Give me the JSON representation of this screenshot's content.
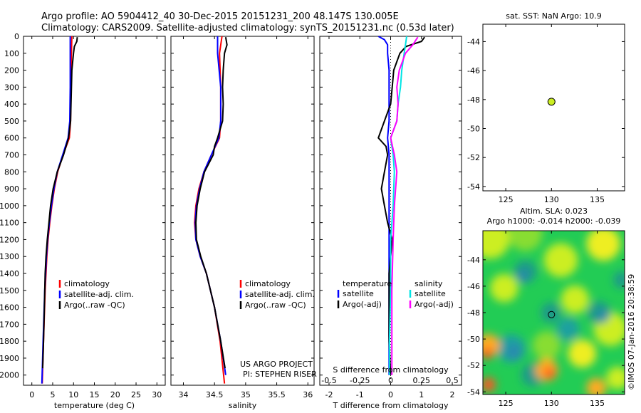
{
  "header": {
    "line1": "Argo profile: AO 5904412_40 30-Dec-2015 20151231_200 48.147S 130.005E",
    "line2": "Climatology: CARS2009. Satellite-adjusted climatology: synTS_20151231.nc (0.53d later)"
  },
  "colors": {
    "climatology": "#ff0000",
    "satellite": "#0000ff",
    "argo": "#000000",
    "sal_sat": "#00e5e5",
    "sal_argo": "#ff00ff",
    "marker": "#ccee22"
  },
  "watermark": "©IMOS 07-Jan-2016 20:38:59",
  "credits": {
    "project": "US ARGO PROJECT",
    "pi": "PI: STEPHEN RISER"
  },
  "chart_data": [
    {
      "type": "line",
      "id": "temperature",
      "xlabel": "temperature (deg C)",
      "xlim": [
        -2,
        32
      ],
      "xticks": [
        0,
        5,
        10,
        15,
        20,
        25,
        30
      ],
      "ylim": [
        0,
        2060
      ],
      "yticks": [
        0,
        100,
        200,
        300,
        400,
        500,
        600,
        700,
        800,
        900,
        1000,
        1100,
        1200,
        1300,
        1400,
        1500,
        1600,
        1700,
        1800,
        1900,
        2000
      ],
      "legend": [
        "climatology",
        "satellite-adj. clim.",
        "Argo(..raw -QC)"
      ],
      "series": [
        {
          "name": "climatology",
          "color": "#ff0000",
          "depth": [
            0,
            100,
            300,
            500,
            600,
            700,
            800,
            900,
            1000,
            1100,
            1200,
            1300,
            1500,
            1800,
            2050
          ],
          "values": [
            9.6,
            9.5,
            9.4,
            9.3,
            9.0,
            7.5,
            6.2,
            5.4,
            4.8,
            4.3,
            3.9,
            3.6,
            3.2,
            2.8,
            2.5
          ]
        },
        {
          "name": "satellite-adj. clim.",
          "color": "#0000ff",
          "depth": [
            0,
            100,
            300,
            500,
            600,
            700,
            800,
            900,
            1000,
            1100,
            1200,
            1300,
            1500,
            1800,
            2050
          ],
          "values": [
            9.2,
            9.2,
            9.2,
            9.1,
            8.7,
            7.4,
            6.1,
            5.3,
            4.7,
            4.2,
            3.8,
            3.5,
            3.1,
            2.7,
            2.4
          ]
        },
        {
          "name": "Argo(..raw -QC)",
          "color": "#000000",
          "depth": [
            5,
            30,
            60,
            100,
            200,
            300,
            400,
            500,
            600,
            700,
            800,
            900,
            1000,
            1100,
            1200,
            1300,
            1400,
            1600,
            1800,
            1960
          ],
          "values": [
            10.9,
            10.8,
            10.2,
            10.0,
            9.6,
            9.5,
            9.4,
            9.3,
            8.8,
            7.6,
            6.1,
            5.1,
            4.5,
            4.1,
            3.7,
            3.4,
            3.2,
            3.0,
            2.8,
            2.6
          ]
        }
      ]
    },
    {
      "type": "line",
      "id": "salinity",
      "xlabel": "salinity",
      "xlim": [
        33.8,
        36.1
      ],
      "xticks": [
        34,
        34.5,
        35,
        35.5,
        36
      ],
      "xticklabels": [
        "34",
        "34.5",
        "35",
        "35.5",
        "36"
      ],
      "ylim": [
        0,
        2060
      ],
      "legend": [
        "climatology",
        "satellite-adj. clim.",
        "Argo(..raw -QC)"
      ],
      "series": [
        {
          "name": "climatology",
          "color": "#ff0000",
          "depth": [
            0,
            100,
            300,
            500,
            600,
            700,
            800,
            900,
            1000,
            1100,
            1200,
            1300,
            1400,
            1600,
            1800,
            2050
          ],
          "values": [
            34.62,
            34.58,
            34.6,
            34.6,
            34.58,
            34.45,
            34.33,
            34.25,
            34.2,
            34.18,
            34.2,
            34.27,
            34.37,
            34.5,
            34.59,
            34.66
          ]
        },
        {
          "name": "satellite-adj. clim.",
          "color": "#0000ff",
          "depth": [
            0,
            100,
            300,
            500,
            600,
            700,
            800,
            900,
            1000,
            1100,
            1200,
            1300,
            1400,
            1600,
            1800,
            2000
          ],
          "values": [
            34.55,
            34.55,
            34.6,
            34.6,
            34.57,
            34.45,
            34.33,
            34.26,
            34.21,
            34.19,
            34.2,
            34.27,
            34.37,
            34.5,
            34.6,
            34.68
          ]
        },
        {
          "name": "Argo(..raw -QC)",
          "color": "#000000",
          "depth": [
            5,
            50,
            100,
            200,
            300,
            400,
            500,
            600,
            650,
            700,
            800,
            900,
            1000,
            1100,
            1200,
            1300,
            1400,
            1600,
            1800,
            1960
          ],
          "values": [
            34.68,
            34.7,
            34.66,
            34.64,
            34.63,
            34.64,
            34.63,
            34.55,
            34.5,
            34.48,
            34.34,
            34.27,
            34.22,
            34.2,
            34.21,
            34.28,
            34.37,
            34.5,
            34.6,
            34.67
          ]
        }
      ]
    },
    {
      "type": "line",
      "id": "difference",
      "xlabel": "T difference from climatology",
      "xlim": [
        -2.3,
        2.3
      ],
      "xticks": [
        -2,
        -1,
        0,
        1,
        2
      ],
      "xticklabels": [
        "-2",
        "-1",
        "0",
        "1",
        "2"
      ],
      "top_axis_label": "S difference from climatology",
      "top_ticks": [
        -0.5,
        -0.25,
        0,
        0.25,
        0.5
      ],
      "top_ticklabels": [
        "-0.5",
        "-0.25",
        "0",
        "0.25",
        "0.5"
      ],
      "ylim": [
        0,
        2060
      ],
      "legend": {
        "temperature": [
          "satellite",
          "Argo(-adj)"
        ],
        "salinity": [
          "satellite",
          "Argo(-adj)"
        ]
      },
      "legend_headers": {
        "temperature": "temperature",
        "salinity": "salinity"
      },
      "series": [
        {
          "name": "temperature satellite",
          "color": "#0000ff",
          "depth": [
            0,
            20,
            50,
            100,
            200,
            300,
            400,
            500,
            600,
            700,
            800,
            1000,
            1200,
            1500,
            1800,
            2000
          ],
          "values": [
            -0.4,
            -0.2,
            -0.1,
            -0.1,
            -0.05,
            -0.05,
            -0.05,
            -0.05,
            -0.1,
            -0.05,
            -0.05,
            -0.05,
            -0.05,
            -0.05,
            -0.05,
            -0.05
          ]
        },
        {
          "name": "temperature Argo(-adj)",
          "color": "#000000",
          "depth": [
            5,
            30,
            60,
            100,
            200,
            300,
            400,
            500,
            600,
            650,
            700,
            800,
            900,
            1000,
            1100,
            1200,
            1300,
            1400,
            1600,
            1800,
            2000
          ],
          "values": [
            1.1,
            1.0,
            0.5,
            0.3,
            0.1,
            0.05,
            0.0,
            -0.2,
            -0.4,
            -0.15,
            -0.1,
            -0.2,
            -0.3,
            -0.2,
            -0.1,
            0.05,
            0.0,
            -0.05,
            -0.05,
            -0.05,
            0.0
          ]
        },
        {
          "name": "salinity satellite",
          "color": "#00e5e5",
          "depth": [
            0,
            50,
            100,
            200,
            300,
            400,
            500,
            600,
            700,
            800,
            1000,
            1200,
            1500,
            1800,
            2000
          ],
          "values": [
            0.13,
            0.12,
            0.11,
            0.09,
            0.08,
            0.06,
            0.05,
            0.0,
            0.02,
            0.03,
            0.02,
            0.0,
            0.0,
            -0.01,
            -0.01
          ]
        },
        {
          "name": "salinity Argo(-adj)",
          "color": "#ff00ff",
          "depth": [
            5,
            50,
            100,
            200,
            300,
            400,
            500,
            600,
            700,
            800,
            1000,
            1200,
            1500,
            1800,
            2000
          ],
          "values": [
            0.22,
            0.18,
            0.12,
            0.07,
            0.05,
            0.06,
            0.05,
            0.0,
            0.03,
            0.05,
            0.03,
            0.02,
            0.01,
            0.01,
            0.01
          ]
        }
      ]
    },
    {
      "type": "scatter",
      "id": "sst_map",
      "title": "sat. SST: NaN Argo: 10.9",
      "xlim": [
        122.5,
        138
      ],
      "ylim": [
        -54.3,
        -42.8
      ],
      "xticks": [
        125,
        130,
        135
      ],
      "yticks": [
        -44,
        -46,
        -48,
        -50,
        -52,
        -54
      ],
      "points": [
        {
          "x": 130.0,
          "y": -48.15
        }
      ]
    },
    {
      "type": "heatmap",
      "id": "sla_map",
      "title": "Altim. SLA: 0.023",
      "subtitle": "Argo h1000: -0.014 h2000: -0.039",
      "xlim": [
        122.5,
        138
      ],
      "ylim": [
        -54.2,
        -41.8
      ],
      "xticks": [
        125,
        130,
        135
      ],
      "yticks": [
        -44,
        -46,
        -48,
        -50,
        -52,
        -54
      ],
      "points": [
        {
          "x": 130.0,
          "y": -48.15
        }
      ]
    }
  ]
}
